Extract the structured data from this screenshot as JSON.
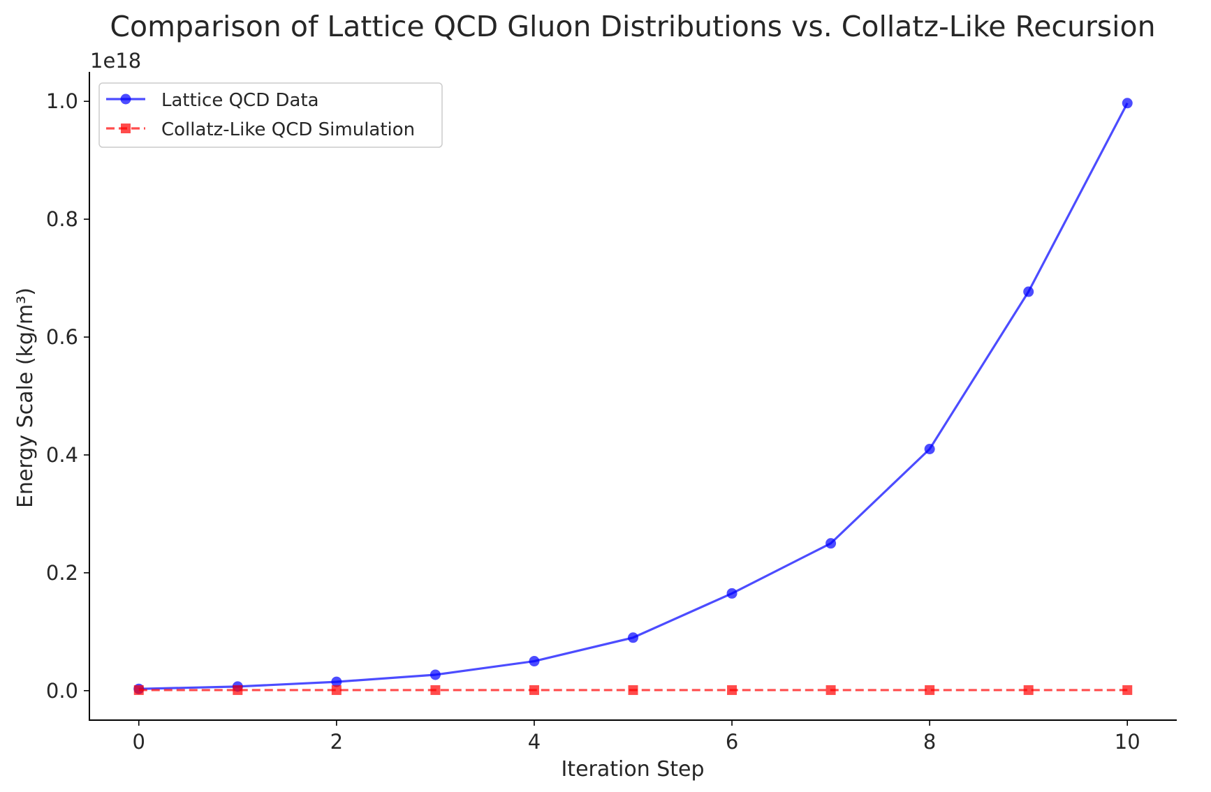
{
  "chart_data": {
    "type": "line",
    "title": "Comparison of Lattice QCD Gluon Distributions vs. Collatz-Like Recursion",
    "xlabel": "Iteration Step",
    "ylabel": "Energy Scale (kg/m³)",
    "y_offset_label": "1e18",
    "y_scale_factor": 1e+18,
    "xlim": [
      -0.5,
      10.5
    ],
    "ylim": [
      -0.05,
      1.05
    ],
    "x_ticks": [
      0,
      2,
      4,
      6,
      8,
      10
    ],
    "x_tick_labels": [
      "0",
      "2",
      "4",
      "6",
      "8",
      "10"
    ],
    "y_ticks": [
      0.0,
      0.2,
      0.4,
      0.6,
      0.8,
      1.0
    ],
    "y_tick_labels": [
      "0.0",
      "0.2",
      "0.4",
      "0.6",
      "0.8",
      "1.0"
    ],
    "grid": false,
    "legend_position": "top-left",
    "x": [
      0,
      1,
      2,
      3,
      4,
      5,
      6,
      7,
      8,
      9,
      10
    ],
    "series": [
      {
        "name": "Lattice QCD Data",
        "color": "#0000ff",
        "line_style": "solid",
        "marker": "circle",
        "values": [
          0.003,
          0.007,
          0.015,
          0.027,
          0.05,
          0.09,
          0.165,
          0.25,
          0.41,
          0.677,
          0.997
        ]
      },
      {
        "name": "Collatz-Like QCD Simulation",
        "color": "#ff0000",
        "line_style": "dashed",
        "marker": "square",
        "values": [
          0.001,
          0.001,
          0.001,
          0.001,
          0.001,
          0.001,
          0.001,
          0.001,
          0.001,
          0.001,
          0.001
        ]
      }
    ]
  }
}
